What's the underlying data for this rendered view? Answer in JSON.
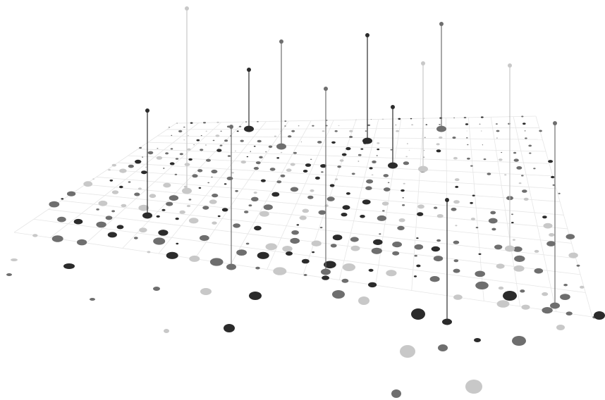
{
  "scene": {
    "description_free": true,
    "palette": {
      "background": "#ffffff",
      "grid_line": "#e6e6e6",
      "dark": "#2b2b2b",
      "mid": "#6e6e6e",
      "light": "#c8c8c8"
    }
  }
}
